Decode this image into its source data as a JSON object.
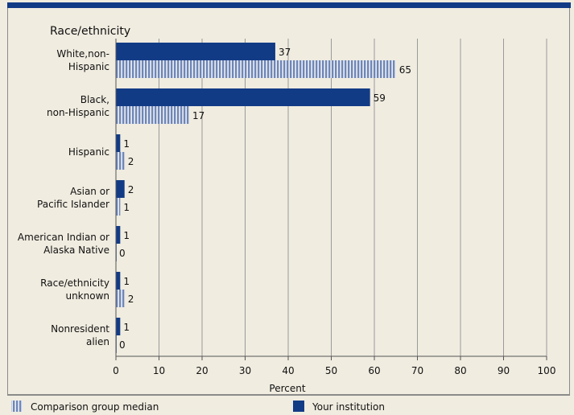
{
  "chart_data": {
    "type": "bar",
    "orientation": "horizontal",
    "title": "Race/ethnicity",
    "xlabel": "Percent",
    "xlim": [
      0,
      100
    ],
    "xticks": [
      0,
      10,
      20,
      30,
      40,
      50,
      60,
      70,
      80,
      90,
      100
    ],
    "categories": [
      [
        "White,non-",
        "Hispanic"
      ],
      [
        "Black,",
        "non-Hispanic"
      ],
      [
        "Hispanic"
      ],
      [
        "Asian or",
        "Pacific Islander"
      ],
      [
        "American Indian or",
        "Alaska Native"
      ],
      [
        "Race/ethnicity",
        "unknown"
      ],
      [
        "Nonresident",
        "alien"
      ]
    ],
    "series": [
      {
        "name": "Your institution",
        "values": [
          37,
          59,
          1,
          2,
          1,
          1,
          1
        ],
        "color": "#123b86",
        "pattern": "solid"
      },
      {
        "name": "Comparison group median",
        "values": [
          65,
          17,
          2,
          1,
          0,
          2,
          0
        ],
        "color": "#7a90bd",
        "pattern": "striped"
      }
    ],
    "grid": "vertical",
    "legend_position": "bottom"
  }
}
